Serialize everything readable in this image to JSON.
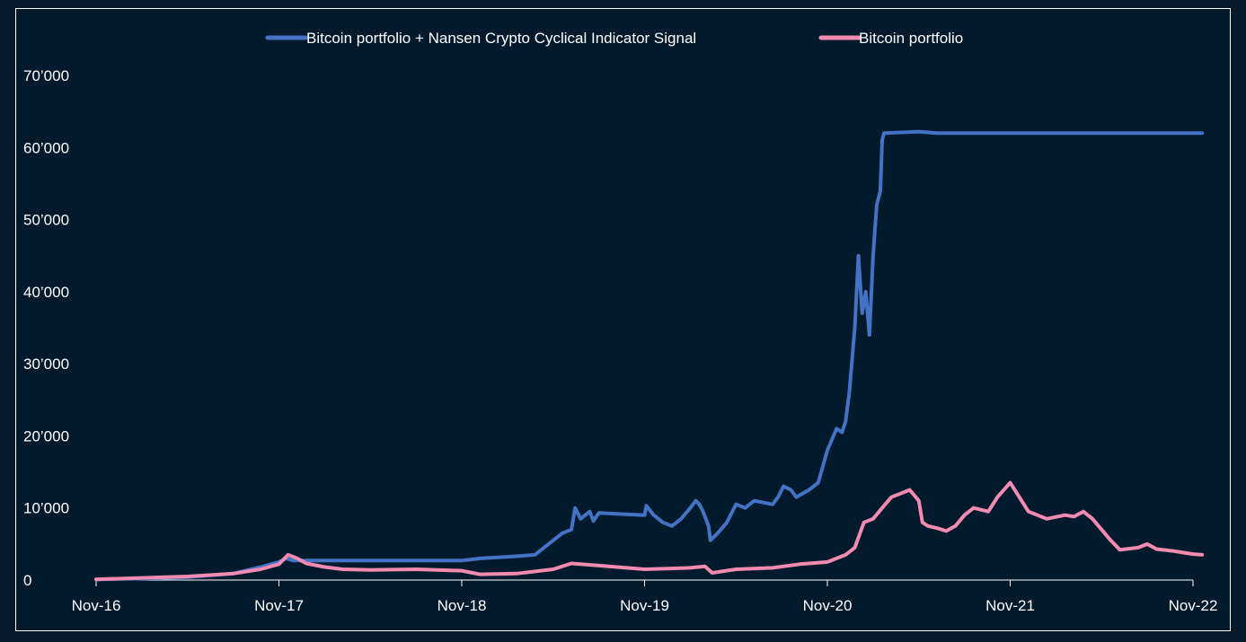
{
  "chart_data": {
    "type": "line",
    "title": "",
    "xlabel": "",
    "ylabel": "",
    "ylim": [
      0,
      70000
    ],
    "x_ticks": [
      "Nov-16",
      "Nov-17",
      "Nov-18",
      "Nov-19",
      "Nov-20",
      "Nov-21",
      "Nov-22"
    ],
    "y_ticks": [
      "0",
      "10’000",
      "20’000",
      "30’000",
      "40’000",
      "50’000",
      "60’000",
      "70’000"
    ],
    "y_tick_values": [
      0,
      10000,
      20000,
      30000,
      40000,
      50000,
      60000,
      70000
    ],
    "legend_position": "top-center",
    "series": [
      {
        "name": "Bitcoin portfolio + Nansen Crypto Cyclical Indicator Signal",
        "color": "#4472c4",
        "points": [
          [
            0.0,
            100
          ],
          [
            0.25,
            200
          ],
          [
            0.5,
            400
          ],
          [
            0.75,
            900
          ],
          [
            0.9,
            1800
          ],
          [
            1.0,
            2500
          ],
          [
            1.04,
            3000
          ],
          [
            1.08,
            2700
          ],
          [
            1.5,
            2700
          ],
          [
            2.0,
            2700
          ],
          [
            2.1,
            3000
          ],
          [
            2.3,
            3300
          ],
          [
            2.4,
            3500
          ],
          [
            2.45,
            4500
          ],
          [
            2.55,
            6500
          ],
          [
            2.6,
            7000
          ],
          [
            2.62,
            10000
          ],
          [
            2.65,
            8500
          ],
          [
            2.7,
            9500
          ],
          [
            2.72,
            8200
          ],
          [
            2.75,
            9300
          ],
          [
            3.0,
            9000
          ],
          [
            3.01,
            10300
          ],
          [
            3.05,
            9000
          ],
          [
            3.1,
            8000
          ],
          [
            3.15,
            7500
          ],
          [
            3.2,
            8500
          ],
          [
            3.25,
            10000
          ],
          [
            3.28,
            11000
          ],
          [
            3.3,
            10500
          ],
          [
            3.32,
            9500
          ],
          [
            3.35,
            7500
          ],
          [
            3.36,
            5500
          ],
          [
            3.4,
            6500
          ],
          [
            3.45,
            8000
          ],
          [
            3.5,
            10500
          ],
          [
            3.55,
            10000
          ],
          [
            3.6,
            11000
          ],
          [
            3.7,
            10500
          ],
          [
            3.73,
            11500
          ],
          [
            3.76,
            13000
          ],
          [
            3.8,
            12500
          ],
          [
            3.83,
            11500
          ],
          [
            3.9,
            12500
          ],
          [
            3.95,
            13500
          ],
          [
            4.0,
            18000
          ],
          [
            4.05,
            21000
          ],
          [
            4.08,
            20500
          ],
          [
            4.1,
            22000
          ],
          [
            4.12,
            26000
          ],
          [
            4.15,
            35000
          ],
          [
            4.17,
            45000
          ],
          [
            4.19,
            37000
          ],
          [
            4.21,
            40000
          ],
          [
            4.23,
            34000
          ],
          [
            4.25,
            45000
          ],
          [
            4.27,
            52000
          ],
          [
            4.29,
            54000
          ],
          [
            4.3,
            61000
          ],
          [
            4.31,
            62000
          ],
          [
            4.5,
            62200
          ],
          [
            4.6,
            62000
          ],
          [
            5.0,
            62000
          ],
          [
            5.5,
            62000
          ],
          [
            6.0,
            62000
          ],
          [
            6.05,
            62000
          ]
        ]
      },
      {
        "name": "Bitcoin portfolio",
        "color": "#f28ab1",
        "points": [
          [
            0.0,
            100
          ],
          [
            0.25,
            300
          ],
          [
            0.5,
            500
          ],
          [
            0.75,
            900
          ],
          [
            0.9,
            1500
          ],
          [
            1.0,
            2200
          ],
          [
            1.05,
            3500
          ],
          [
            1.1,
            3000
          ],
          [
            1.15,
            2300
          ],
          [
            1.25,
            1800
          ],
          [
            1.35,
            1500
          ],
          [
            1.5,
            1400
          ],
          [
            1.75,
            1500
          ],
          [
            2.0,
            1300
          ],
          [
            2.1,
            800
          ],
          [
            2.3,
            900
          ],
          [
            2.5,
            1500
          ],
          [
            2.6,
            2300
          ],
          [
            2.75,
            2000
          ],
          [
            3.0,
            1500
          ],
          [
            3.25,
            1700
          ],
          [
            3.33,
            1900
          ],
          [
            3.37,
            1000
          ],
          [
            3.5,
            1500
          ],
          [
            3.7,
            1700
          ],
          [
            3.85,
            2200
          ],
          [
            4.0,
            2500
          ],
          [
            4.1,
            3500
          ],
          [
            4.15,
            4500
          ],
          [
            4.2,
            8000
          ],
          [
            4.25,
            8500
          ],
          [
            4.3,
            10000
          ],
          [
            4.35,
            11500
          ],
          [
            4.4,
            12000
          ],
          [
            4.45,
            12500
          ],
          [
            4.5,
            11000
          ],
          [
            4.52,
            8000
          ],
          [
            4.55,
            7500
          ],
          [
            4.6,
            7200
          ],
          [
            4.65,
            6800
          ],
          [
            4.7,
            7500
          ],
          [
            4.75,
            9000
          ],
          [
            4.8,
            10000
          ],
          [
            4.88,
            9500
          ],
          [
            4.93,
            11500
          ],
          [
            5.0,
            13500
          ],
          [
            5.05,
            11500
          ],
          [
            5.1,
            9500
          ],
          [
            5.2,
            8500
          ],
          [
            5.3,
            9000
          ],
          [
            5.35,
            8800
          ],
          [
            5.4,
            9500
          ],
          [
            5.45,
            8500
          ],
          [
            5.55,
            5500
          ],
          [
            5.6,
            4200
          ],
          [
            5.7,
            4500
          ],
          [
            5.75,
            5000
          ],
          [
            5.8,
            4300
          ],
          [
            5.9,
            4000
          ],
          [
            6.0,
            3600
          ],
          [
            6.05,
            3500
          ]
        ]
      }
    ]
  }
}
